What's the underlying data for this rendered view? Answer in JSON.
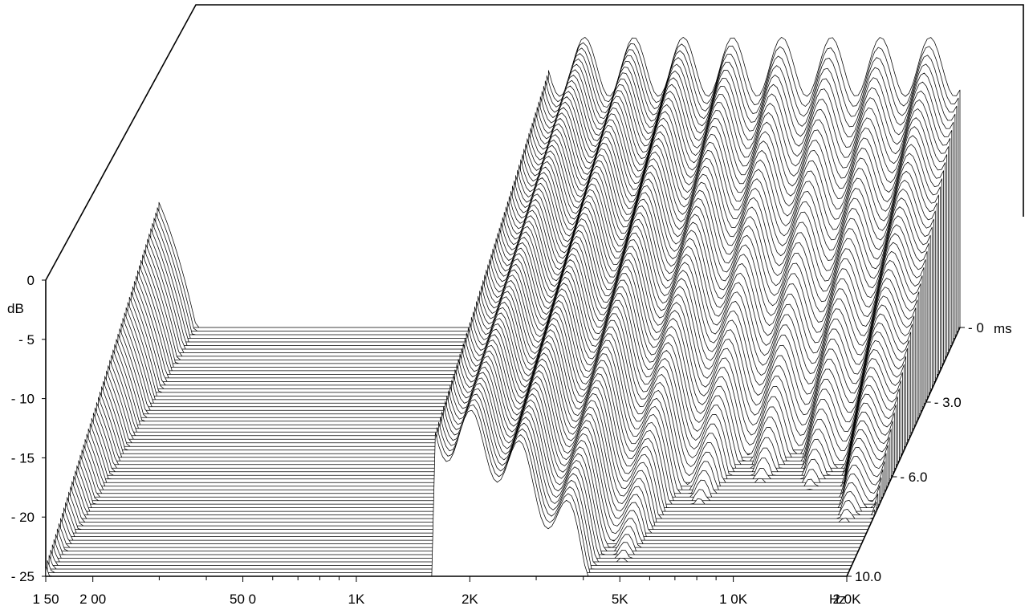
{
  "chart_data": {
    "type": "waterfall",
    "z_label": "dB",
    "freq_unit": "Hz",
    "time_unit": "ms",
    "z_ticks": [
      "0",
      "- 5",
      "- 10",
      "- 15",
      "- 20",
      "- 25"
    ],
    "z_tick_values": [
      0,
      -5,
      -10,
      -15,
      -20,
      -25
    ],
    "freq_ticks": [
      {
        "label": "1 50",
        "value": 150
      },
      {
        "label": "2 00",
        "value": 200
      },
      {
        "label": "50 0",
        "value": 500
      },
      {
        "label": "1K",
        "value": 1000
      },
      {
        "label": "2K",
        "value": 2000
      },
      {
        "label": "5K",
        "value": 5000
      },
      {
        "label": "1 0K",
        "value": 10000
      },
      {
        "label": "2 0K",
        "value": 20000
      }
    ],
    "time_ticks": [
      {
        "label": "0",
        "value": 0
      },
      {
        "label": "3.0",
        "value": 3.0
      },
      {
        "label": "6.0",
        "value": 6.0
      },
      {
        "label": "10.0",
        "value": 10.0
      }
    ],
    "freq_range": [
      150,
      20000
    ],
    "z_range": [
      -25,
      0
    ],
    "time_range": [
      0,
      10.0
    ],
    "slice_count": 70,
    "colors": {
      "line": "#000000",
      "fill": "#ffffff",
      "background": "#ffffff"
    }
  }
}
